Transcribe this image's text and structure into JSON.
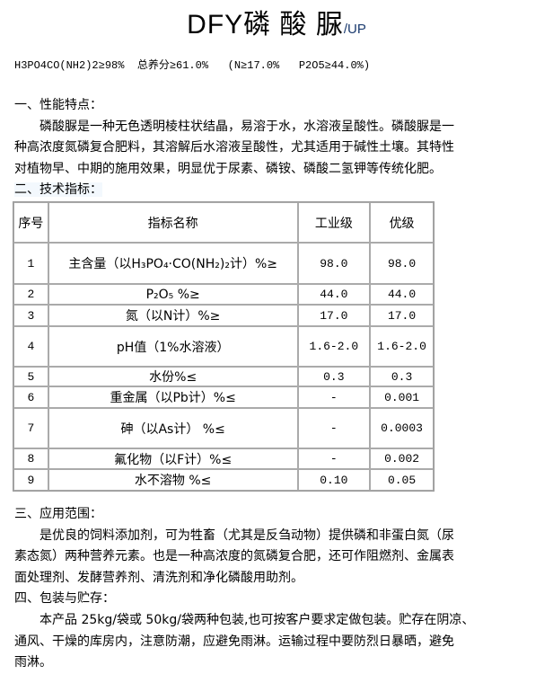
{
  "title": {
    "main": "DFY磷 酸 脲",
    "suffix": "/UP"
  },
  "formula": "H3PO4CO(NH2)2≥98%  总养分≥61.0%   (N≥17.0%   P2O5≥44.0%)",
  "sections": [
    {
      "heading": "一、性能特点：",
      "lines": [
        "　　磷酸脲是一种无色透明棱柱状结晶，易溶于水，水溶液呈酸性。磷酸脲是一",
        "种高浓度氮磷复合肥料，其溶解后水溶液呈酸性，尤其适用于碱性土壤。其特性",
        "对植物早、中期的施用效果，明显优于尿素、磷铵、磷酸二氢钾等传统化肥。"
      ]
    },
    {
      "heading": "二、技术指标："
    },
    {
      "heading": "三、应用范围：",
      "lines": [
        "　　是优良的饲料添加剂，可为牲畜（尤其是反刍动物）提供磷和非蛋白氮（尿",
        "素态氮）两种营养元素。也是一种高浓度的氮磷复合肥，还可作阻燃剂、金属表",
        "面处理剂、发酵营养剂、清洗剂和净化磷酸用助剂。"
      ]
    },
    {
      "heading": "四、包装与贮存：",
      "lines": [
        "　　本产品 25kg/袋或 50kg/袋两种包装,也可按客户要求定做包装。贮存在阴凉、",
        "通风、干燥的库房内，注意防潮，应避免雨淋。运输过程中要防烈日暴晒，避免",
        "雨淋。"
      ]
    }
  ],
  "table": {
    "headers": [
      "序号",
      "指标名称",
      "工业级",
      "优级"
    ],
    "rows": [
      [
        "1",
        "主含量（以H₃PO₄·CO(NH₂)₂计）%≥",
        "98.0",
        "98.0"
      ],
      [
        "2",
        "P₂O₅  %≥",
        "44.0",
        "44.0"
      ],
      [
        "3",
        "氮（以N计）%≥",
        "17.0",
        "17.0"
      ],
      [
        "4",
        "pH值（1%水溶液）",
        "1.6-2.0",
        "1.6-2.0"
      ],
      [
        "5",
        "水份%≤",
        "0.3",
        "0.3"
      ],
      [
        "6",
        "重金属（以Pb计）%≤",
        "-",
        "0.001"
      ],
      [
        "7",
        "砷（以As计）  %≤",
        "-",
        "0.0003"
      ],
      [
        "8",
        "氟化物（以F计）%≤",
        "-",
        "0.002"
      ],
      [
        "9",
        "水不溶物  %≤",
        "0.10",
        "0.05"
      ]
    ]
  }
}
